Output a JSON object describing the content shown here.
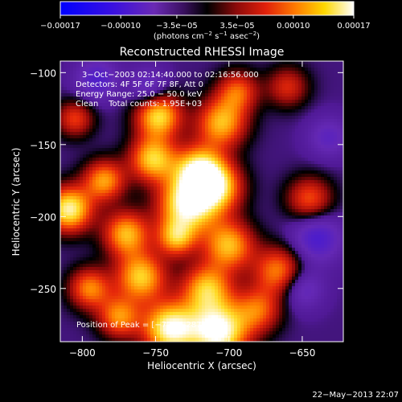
{
  "chart_data": {
    "type": "heatmap",
    "title": "Reconstructed RHESSI Image",
    "xlabel": "Heliocentric X (arcsec)",
    "ylabel": "Heliocentric Y (arcsec)",
    "xlim": [
      -815,
      -622
    ],
    "ylim": [
      -287,
      -92
    ],
    "x_ticks": [
      -800,
      -750,
      -700,
      -650
    ],
    "x_tick_labels": [
      "−800",
      "−750",
      "−700",
      "−650"
    ],
    "y_ticks": [
      -100,
      -150,
      -200,
      -250
    ],
    "y_tick_labels": [
      "−100",
      "−150",
      "−200",
      "−250"
    ],
    "colorbar": {
      "range": [
        -0.00017,
        0.00017
      ],
      "tick_values": [
        -0.00017,
        -0.0001,
        -3.5e-05,
        3.5e-05,
        0.0001,
        0.00017
      ],
      "tick_labels": [
        "−0.00017",
        "−0.00010",
        "−3.5e−05",
        "3.5e−05",
        "0.00010",
        "0.00017"
      ],
      "units_prefix": "(photons cm",
      "units_exp1": "−2",
      "units_mid": " s",
      "units_exp2": "−1",
      "units_mid2": " asec",
      "units_exp3": "−2",
      "units_suffix": ")"
    },
    "annotations": {
      "time": "3−Oct−2003 02:14:40.000 to 02:16:56.000",
      "detectors": "Detectors: 4F 5F 6F 7F 8F, Att 0",
      "energy": "Energy Range: 25.0 − 50.0 keV",
      "clean": "Clean    Total counts: 1.95E+03",
      "peak": "Position of Peak = [−723,−287]"
    },
    "sources": [
      {
        "x": -707,
        "y": -280,
        "amp": 1.0,
        "r": 14
      },
      {
        "x": -740,
        "y": -278,
        "amp": 0.95,
        "r": 13
      },
      {
        "x": -728,
        "y": -192,
        "amp": 0.95,
        "r": 14
      },
      {
        "x": -809,
        "y": -195,
        "amp": 0.9,
        "r": 11
      },
      {
        "x": -720,
        "y": -168,
        "amp": 0.85,
        "r": 12
      },
      {
        "x": -752,
        "y": -160,
        "amp": 0.75,
        "r": 11
      },
      {
        "x": -748,
        "y": -130,
        "amp": 0.8,
        "r": 11
      },
      {
        "x": -770,
        "y": -212,
        "amp": 0.7,
        "r": 11
      },
      {
        "x": -785,
        "y": -175,
        "amp": 0.65,
        "r": 10
      },
      {
        "x": -705,
        "y": -135,
        "amp": 0.7,
        "r": 12
      },
      {
        "x": -707,
        "y": -180,
        "amp": 0.65,
        "r": 12
      },
      {
        "x": -700,
        "y": -220,
        "amp": 0.7,
        "r": 12
      },
      {
        "x": -760,
        "y": -242,
        "amp": 0.75,
        "r": 12
      },
      {
        "x": -795,
        "y": -250,
        "amp": 0.6,
        "r": 10
      },
      {
        "x": -715,
        "y": -250,
        "amp": 0.7,
        "r": 12
      },
      {
        "x": -775,
        "y": -270,
        "amp": 0.6,
        "r": 10
      },
      {
        "x": -666,
        "y": -238,
        "amp": 0.6,
        "r": 12
      },
      {
        "x": -645,
        "y": -188,
        "amp": 0.5,
        "r": 11
      },
      {
        "x": -680,
        "y": -265,
        "amp": 0.5,
        "r": 11
      },
      {
        "x": -736,
        "y": -215,
        "amp": 0.6,
        "r": 9
      },
      {
        "x": -805,
        "y": -132,
        "amp": 0.45,
        "r": 9
      },
      {
        "x": -660,
        "y": -110,
        "amp": 0.4,
        "r": 10
      },
      {
        "x": -694,
        "y": -113,
        "amp": 0.5,
        "r": 10
      },
      {
        "x": -790,
        "y": -105,
        "amp": -0.4,
        "r": 10
      },
      {
        "x": -755,
        "y": -110,
        "amp": -0.35,
        "r": 9
      },
      {
        "x": -640,
        "y": -215,
        "amp": -0.45,
        "r": 12
      },
      {
        "x": -650,
        "y": -250,
        "amp": -0.35,
        "r": 10
      },
      {
        "x": -632,
        "y": -145,
        "amp": -0.3,
        "r": 10
      }
    ],
    "colors": {
      "low": "#0000ff",
      "mid_low": "#5a1fb8",
      "mid": "#000000",
      "mid_high": "#c8141e",
      "high1": "#ff8c00",
      "high2": "#ffff55",
      "high3": "#ffffff"
    }
  },
  "footer": {
    "date": "22−May−2013 22:07"
  }
}
